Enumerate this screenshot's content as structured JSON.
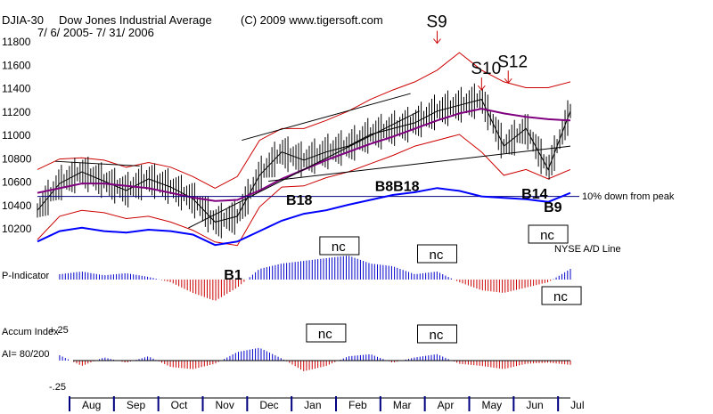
{
  "header": {
    "ticker": "DJIA-30",
    "name": "Dow Jones Industrial Average",
    "copyright": "(C) 2009 www.tigersoft.com",
    "date_range": "7/ 6/ 2005- 7/ 31/ 2006"
  },
  "colors": {
    "price": "#000000",
    "bands": "#cc0000",
    "moving_average": "#800080",
    "ad_line": "#0000ff",
    "hist_positive": "#0000cc",
    "hist_negative": "#cc0000",
    "reference_line": "#000080",
    "signal_arrow": "#cc0000"
  },
  "chart_data": [
    {
      "type": "line",
      "panel": "price",
      "y_ticks": [
        10200,
        10400,
        10600,
        10800,
        11000,
        11200,
        11400,
        11600,
        11800
      ],
      "ylim": [
        10100,
        11850
      ],
      "months": [
        "Aug",
        "Sep",
        "Oct",
        "Nov",
        "Dec",
        "Jan",
        "Feb",
        "Mar",
        "Apr",
        "May",
        "Jun",
        "Jul"
      ],
      "x": [
        0,
        0.5,
        1,
        1.5,
        2,
        2.5,
        3,
        3.5,
        4,
        4.5,
        5,
        5.5,
        6,
        6.5,
        7,
        7.5,
        8,
        8.5,
        9,
        9.5,
        10,
        10.5,
        11,
        11.5,
        12
      ],
      "price": [
        10350,
        10580,
        10680,
        10600,
        10520,
        10620,
        10550,
        10450,
        10250,
        10300,
        10650,
        10850,
        10780,
        10850,
        10900,
        11000,
        11050,
        11100,
        11200,
        11250,
        11300,
        10900,
        11050,
        10700,
        11200
      ],
      "ma": [
        10500,
        10540,
        10580,
        10580,
        10560,
        10540,
        10500,
        10460,
        10430,
        10440,
        10520,
        10620,
        10700,
        10780,
        10850,
        10920,
        10980,
        11050,
        11120,
        11180,
        11220,
        11180,
        11150,
        11130,
        11120
      ],
      "upper_band": [
        10700,
        10790,
        10800,
        10780,
        10720,
        10760,
        10720,
        10640,
        10540,
        10640,
        10950,
        11050,
        11050,
        11120,
        11200,
        11300,
        11380,
        11450,
        11550,
        11700,
        11550,
        11450,
        11400,
        11400,
        11450
      ],
      "lower_band": [
        10100,
        10300,
        10350,
        10330,
        10280,
        10300,
        10250,
        10180,
        10080,
        10050,
        10380,
        10550,
        10560,
        10630,
        10680,
        10750,
        10820,
        10900,
        10950,
        11000,
        10850,
        10650,
        10700,
        10620,
        10700
      ],
      "reference_line": {
        "value": 10470,
        "label": "10% down from peak"
      },
      "signals": [
        {
          "label": "S9",
          "x": 9.0,
          "value": 11780
        },
        {
          "label": "S10",
          "x": 10.0,
          "value": 11380
        },
        {
          "label": "S12",
          "x": 10.6,
          "value": 11440
        }
      ]
    },
    {
      "type": "line",
      "panel": "ad_line",
      "series_name": "NYSE A/D Line",
      "x": [
        0,
        0.5,
        1,
        1.5,
        2,
        2.5,
        3,
        3.5,
        4,
        4.5,
        5,
        5.5,
        6,
        6.5,
        7,
        7.5,
        8,
        8.5,
        9,
        9.5,
        10,
        10.5,
        11,
        11.5,
        12
      ],
      "values": [
        15,
        30,
        35,
        30,
        28,
        32,
        30,
        25,
        10,
        15,
        30,
        45,
        55,
        60,
        68,
        75,
        82,
        86,
        92,
        88,
        80,
        78,
        76,
        72,
        85
      ],
      "ylim": [
        0,
        100
      ],
      "labels": [
        {
          "text": "B18",
          "x": 5.8,
          "v": 68
        },
        {
          "text": "B8B18",
          "x": 7.8,
          "v": 88
        },
        {
          "text": "B14",
          "x": 11.1,
          "v": 77
        },
        {
          "text": "B9",
          "x": 11.6,
          "v": 58
        }
      ],
      "nc_labels": [
        {
          "text": "nc",
          "x": 6.8
        },
        {
          "text": "nc",
          "x": 9.0
        },
        {
          "text": "nc",
          "x": 11.5
        }
      ]
    },
    {
      "type": "bar",
      "panel": "p_indicator",
      "label": "P-Indicator",
      "x": [
        0.5,
        1,
        1.5,
        2,
        2.5,
        3,
        3.5,
        4,
        4.5,
        5,
        5.5,
        6,
        6.5,
        7,
        7.5,
        8,
        8.5,
        9,
        9.5,
        10,
        10.5,
        11,
        11.5,
        12
      ],
      "values": [
        10,
        15,
        8,
        12,
        5,
        -5,
        -25,
        -40,
        -15,
        20,
        30,
        35,
        40,
        45,
        30,
        25,
        10,
        15,
        -5,
        -20,
        -25,
        -15,
        -5,
        20
      ],
      "ylim": [
        -50,
        50
      ],
      "labels": [
        {
          "text": "B1",
          "x": 4.2
        }
      ],
      "nc_labels": [
        {
          "text": "nc",
          "x": 11.8
        }
      ]
    },
    {
      "type": "bar",
      "panel": "accum_index",
      "title": "Accum Index",
      "subtitle": "AI= 80/200",
      "y_ticks": [
        "+.25",
        "-.25"
      ],
      "x": [
        0.5,
        1,
        1.5,
        2,
        2.5,
        3,
        3.5,
        4,
        4.5,
        5,
        5.5,
        6,
        6.5,
        7,
        7.5,
        8,
        8.5,
        9,
        9.5,
        10,
        10.5,
        11,
        11.5,
        12
      ],
      "values": [
        0.05,
        -0.05,
        0.03,
        -0.02,
        0.04,
        -0.06,
        -0.08,
        -0.03,
        0.08,
        0.12,
        0.02,
        -0.1,
        -0.05,
        0.04,
        0.06,
        -0.02,
        0.03,
        0.06,
        -0.03,
        -0.05,
        -0.08,
        -0.03,
        -0.02,
        -0.04
      ],
      "ylim": [
        -0.25,
        0.25
      ],
      "nc_labels": [
        {
          "text": "nc",
          "x": 6.5
        },
        {
          "text": "nc",
          "x": 9.0
        }
      ]
    }
  ]
}
